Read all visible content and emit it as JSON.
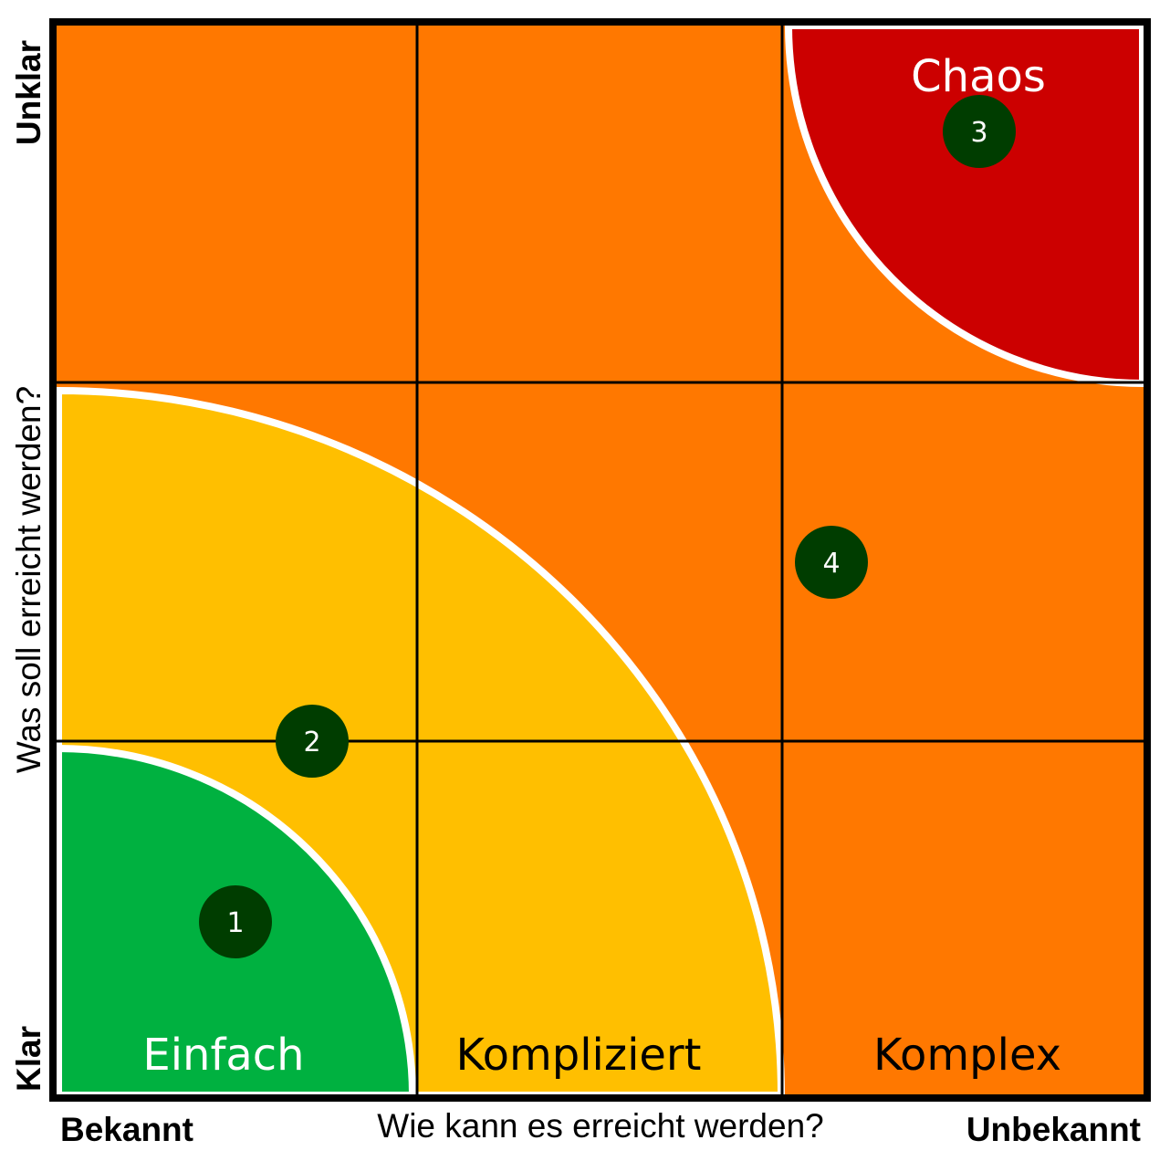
{
  "axes": {
    "x_title": "Wie kann es erreicht werden?",
    "x_low": "Bekannt",
    "x_high": "Unbekannt",
    "y_title": "Was soll erreicht werden?",
    "y_low": "Klar",
    "y_high": "Unklar"
  },
  "regions": {
    "simple": {
      "label": "Einfach",
      "color": "#00b140"
    },
    "complicated": {
      "label": "Kompliziert",
      "color": "#ffbf00"
    },
    "complex": {
      "label": "Komplex",
      "color": "#ff7800"
    },
    "chaos": {
      "label": "Chaos",
      "color": "#cc0000"
    }
  },
  "markers": [
    {
      "label": "1"
    },
    {
      "label": "2"
    },
    {
      "label": "3"
    },
    {
      "label": "4"
    }
  ],
  "colors": {
    "marker_fill": "#003d00",
    "grid": "#000000",
    "separator": "#ffffff"
  }
}
